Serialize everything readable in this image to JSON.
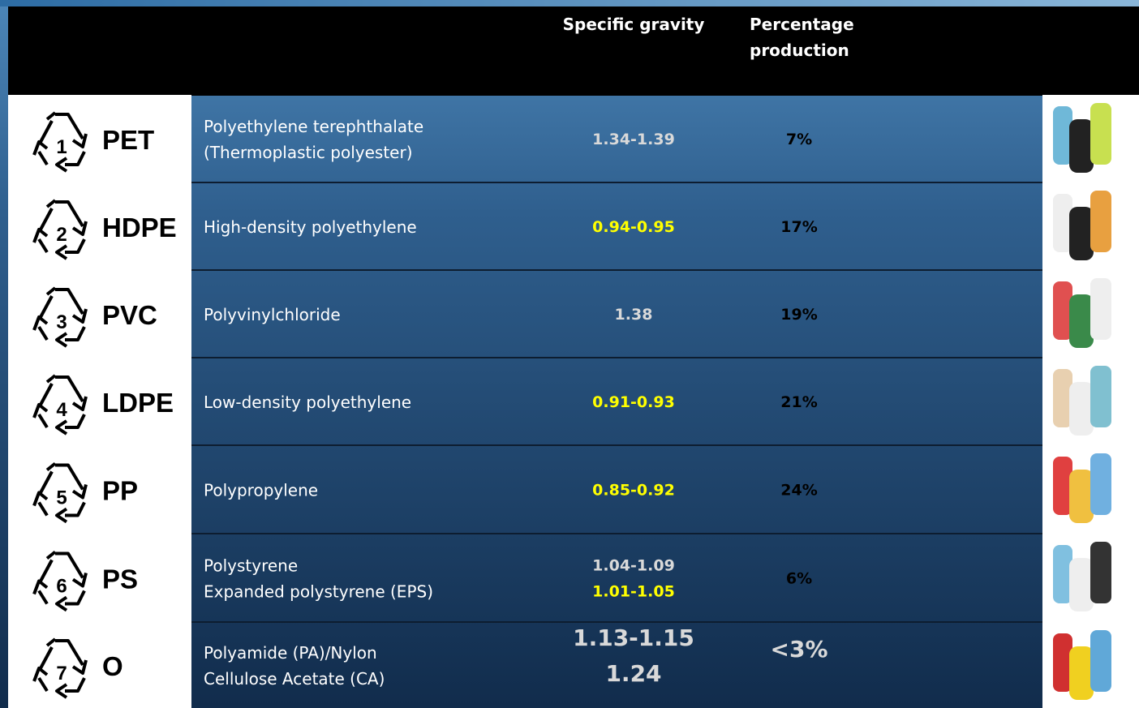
{
  "header": {
    "columns": [
      "Specific gravity",
      "Percentage production"
    ]
  },
  "rows": [
    {
      "code": "1",
      "abbr": "PET",
      "name": [
        "Polyethylene terephthalate",
        "(Thermoplastic polyester)"
      ],
      "gravity": [
        {
          "text": "1.34-1.39",
          "color": "#d9d9d9"
        }
      ],
      "percentage": "7%"
    },
    {
      "code": "2",
      "abbr": "HDPE",
      "name": [
        "High-density polyethylene"
      ],
      "gravity": [
        {
          "text": "0.94-0.95",
          "color": "#ffff00"
        }
      ],
      "percentage": "17%"
    },
    {
      "code": "3",
      "abbr": "PVC",
      "name": [
        "Polyvinylchloride"
      ],
      "gravity": [
        {
          "text": "1.38",
          "color": "#d9d9d9"
        }
      ],
      "percentage": "19%"
    },
    {
      "code": "4",
      "abbr": "LDPE",
      "name": [
        "Low-density polyethylene"
      ],
      "gravity": [
        {
          "text": "0.91-0.93",
          "color": "#ffff00"
        }
      ],
      "percentage": "21%"
    },
    {
      "code": "5",
      "abbr": "PP",
      "name": [
        "Polypropylene"
      ],
      "gravity": [
        {
          "text": "0.85-0.92",
          "color": "#ffff00"
        }
      ],
      "percentage": "24%"
    },
    {
      "code": "6",
      "abbr": "PS",
      "name": [
        "Polystyrene",
        "Expanded polystyrene (EPS)"
      ],
      "gravity": [
        {
          "text": "1.04-1.09",
          "color": "#d9d9d9"
        },
        {
          "text": "1.01-1.05",
          "color": "#ffff00"
        }
      ],
      "percentage": "6%"
    },
    {
      "code": "7",
      "abbr": "O",
      "name": [
        "Polyamide (PA)/Nylon",
        "Cellulose Acetate (CA)"
      ],
      "gravity": [
        {
          "text": "1.13-1.15",
          "color": "#d9d9d9"
        },
        {
          "text": "1.24",
          "color": "#d9d9d9"
        }
      ],
      "percentage": "<3%"
    }
  ]
}
